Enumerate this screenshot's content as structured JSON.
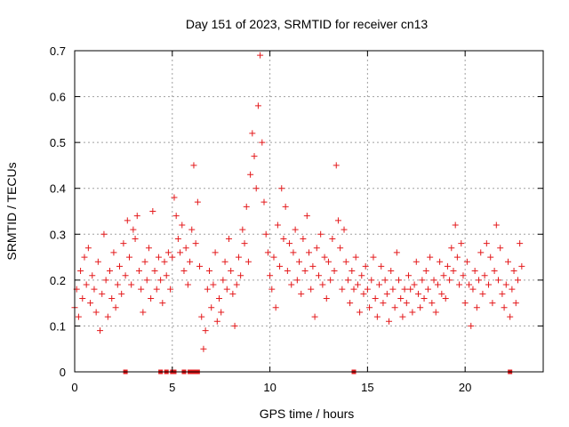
{
  "chart_data": {
    "type": "scatter",
    "title": "Day 151 of 2023, SRMTID for receiver cn13",
    "xlabel": "GPS time / hours",
    "ylabel": "SRMTID / TECUs",
    "xlim": [
      0,
      24
    ],
    "ylim": [
      0,
      0.7
    ],
    "xticks": [
      "0",
      "5",
      "10",
      "15",
      "20"
    ],
    "yticks": [
      "0",
      "0.1",
      "0.2",
      "0.3",
      "0.4",
      "0.5",
      "0.6",
      "0.7"
    ],
    "grid": true,
    "marker": "plus",
    "color": "#e41a1c",
    "series": [
      {
        "name": "SRMTID",
        "points": [
          [
            0.0,
            0.14
          ],
          [
            0.1,
            0.18
          ],
          [
            0.2,
            0.12
          ],
          [
            0.3,
            0.22
          ],
          [
            0.4,
            0.16
          ],
          [
            0.5,
            0.25
          ],
          [
            0.6,
            0.19
          ],
          [
            0.7,
            0.27
          ],
          [
            0.8,
            0.15
          ],
          [
            0.9,
            0.21
          ],
          [
            1.0,
            0.18
          ],
          [
            1.1,
            0.13
          ],
          [
            1.2,
            0.24
          ],
          [
            1.3,
            0.09
          ],
          [
            1.4,
            0.17
          ],
          [
            1.5,
            0.3
          ],
          [
            1.6,
            0.2
          ],
          [
            1.7,
            0.12
          ],
          [
            1.8,
            0.22
          ],
          [
            1.9,
            0.16
          ],
          [
            2.0,
            0.26
          ],
          [
            2.1,
            0.14
          ],
          [
            2.2,
            0.19
          ],
          [
            2.3,
            0.23
          ],
          [
            2.4,
            0.17
          ],
          [
            2.5,
            0.28
          ],
          [
            2.6,
            0.21
          ],
          [
            2.7,
            0.33
          ],
          [
            2.8,
            0.25
          ],
          [
            2.9,
            0.19
          ],
          [
            3.0,
            0.31
          ],
          [
            3.1,
            0.29
          ],
          [
            3.2,
            0.34
          ],
          [
            3.3,
            0.22
          ],
          [
            3.4,
            0.18
          ],
          [
            3.5,
            0.13
          ],
          [
            3.6,
            0.24
          ],
          [
            3.7,
            0.2
          ],
          [
            3.8,
            0.27
          ],
          [
            3.9,
            0.16
          ],
          [
            4.0,
            0.35
          ],
          [
            4.1,
            0.22
          ],
          [
            4.2,
            0.18
          ],
          [
            4.3,
            0.25
          ],
          [
            4.4,
            0.2
          ],
          [
            4.5,
            0.15
          ],
          [
            4.6,
            0.24
          ],
          [
            4.7,
            0.21
          ],
          [
            4.8,
            0.26
          ],
          [
            4.9,
            0.18
          ],
          [
            5.0,
            0.25
          ],
          [
            5.1,
            0.38
          ],
          [
            5.2,
            0.34
          ],
          [
            5.3,
            0.29
          ],
          [
            5.4,
            0.26
          ],
          [
            5.5,
            0.32
          ],
          [
            5.6,
            0.22
          ],
          [
            5.7,
            0.27
          ],
          [
            5.8,
            0.19
          ],
          [
            5.9,
            0.24
          ],
          [
            6.0,
            0.31
          ],
          [
            6.1,
            0.45
          ],
          [
            6.2,
            0.28
          ],
          [
            6.3,
            0.37
          ],
          [
            6.4,
            0.23
          ],
          [
            6.5,
            0.12
          ],
          [
            6.6,
            0.05
          ],
          [
            6.7,
            0.09
          ],
          [
            6.8,
            0.18
          ],
          [
            6.9,
            0.22
          ],
          [
            7.0,
            0.14
          ],
          [
            7.1,
            0.19
          ],
          [
            7.2,
            0.26
          ],
          [
            7.3,
            0.11
          ],
          [
            7.4,
            0.16
          ],
          [
            7.5,
            0.13
          ],
          [
            7.6,
            0.2
          ],
          [
            7.7,
            0.24
          ],
          [
            7.8,
            0.18
          ],
          [
            7.9,
            0.29
          ],
          [
            8.0,
            0.22
          ],
          [
            8.1,
            0.17
          ],
          [
            8.2,
            0.1
          ],
          [
            8.3,
            0.19
          ],
          [
            8.4,
            0.25
          ],
          [
            8.5,
            0.21
          ],
          [
            8.6,
            0.31
          ],
          [
            8.7,
            0.28
          ],
          [
            8.8,
            0.36
          ],
          [
            8.9,
            0.24
          ],
          [
            9.0,
            0.43
          ],
          [
            9.1,
            0.52
          ],
          [
            9.2,
            0.47
          ],
          [
            9.3,
            0.4
          ],
          [
            9.4,
            0.58
          ],
          [
            9.5,
            0.69
          ],
          [
            9.6,
            0.5
          ],
          [
            9.7,
            0.37
          ],
          [
            9.8,
            0.3
          ],
          [
            9.9,
            0.26
          ],
          [
            10.0,
            0.21
          ],
          [
            10.1,
            0.18
          ],
          [
            10.2,
            0.25
          ],
          [
            10.3,
            0.14
          ],
          [
            10.4,
            0.32
          ],
          [
            10.5,
            0.23
          ],
          [
            10.6,
            0.4
          ],
          [
            10.7,
            0.29
          ],
          [
            10.8,
            0.36
          ],
          [
            10.9,
            0.22
          ],
          [
            11.0,
            0.28
          ],
          [
            11.1,
            0.19
          ],
          [
            11.2,
            0.26
          ],
          [
            11.3,
            0.31
          ],
          [
            11.4,
            0.2
          ],
          [
            11.5,
            0.24
          ],
          [
            11.6,
            0.17
          ],
          [
            11.7,
            0.29
          ],
          [
            11.8,
            0.22
          ],
          [
            11.9,
            0.34
          ],
          [
            12.0,
            0.26
          ],
          [
            12.1,
            0.18
          ],
          [
            12.2,
            0.23
          ],
          [
            12.3,
            0.12
          ],
          [
            12.4,
            0.27
          ],
          [
            12.5,
            0.21
          ],
          [
            12.6,
            0.3
          ],
          [
            12.7,
            0.19
          ],
          [
            12.8,
            0.25
          ],
          [
            12.9,
            0.16
          ],
          [
            13.0,
            0.24
          ],
          [
            13.1,
            0.2
          ],
          [
            13.2,
            0.29
          ],
          [
            13.3,
            0.22
          ],
          [
            13.4,
            0.45
          ],
          [
            13.5,
            0.33
          ],
          [
            13.6,
            0.27
          ],
          [
            13.7,
            0.18
          ],
          [
            13.8,
            0.31
          ],
          [
            13.9,
            0.24
          ],
          [
            14.0,
            0.2
          ],
          [
            14.1,
            0.15
          ],
          [
            14.2,
            0.22
          ],
          [
            14.3,
            0.18
          ],
          [
            14.4,
            0.25
          ],
          [
            14.5,
            0.19
          ],
          [
            14.6,
            0.13
          ],
          [
            14.7,
            0.21
          ],
          [
            14.8,
            0.17
          ],
          [
            14.9,
            0.23
          ],
          [
            15.0,
            0.18
          ],
          [
            15.1,
            0.14
          ],
          [
            15.2,
            0.2
          ],
          [
            15.3,
            0.25
          ],
          [
            15.4,
            0.16
          ],
          [
            15.5,
            0.12
          ],
          [
            15.6,
            0.19
          ],
          [
            15.7,
            0.23
          ],
          [
            15.8,
            0.15
          ],
          [
            15.9,
            0.2
          ],
          [
            16.0,
            0.17
          ],
          [
            16.1,
            0.11
          ],
          [
            16.2,
            0.22
          ],
          [
            16.3,
            0.18
          ],
          [
            16.4,
            0.14
          ],
          [
            16.5,
            0.26
          ],
          [
            16.6,
            0.2
          ],
          [
            16.7,
            0.16
          ],
          [
            16.8,
            0.12
          ],
          [
            16.9,
            0.18
          ],
          [
            17.0,
            0.15
          ],
          [
            17.1,
            0.21
          ],
          [
            17.2,
            0.18
          ],
          [
            17.3,
            0.13
          ],
          [
            17.4,
            0.19
          ],
          [
            17.5,
            0.24
          ],
          [
            17.6,
            0.17
          ],
          [
            17.7,
            0.14
          ],
          [
            17.8,
            0.2
          ],
          [
            17.9,
            0.16
          ],
          [
            18.0,
            0.22
          ],
          [
            18.1,
            0.18
          ],
          [
            18.2,
            0.25
          ],
          [
            18.3,
            0.15
          ],
          [
            18.4,
            0.2
          ],
          [
            18.5,
            0.13
          ],
          [
            18.6,
            0.19
          ],
          [
            18.7,
            0.24
          ],
          [
            18.8,
            0.17
          ],
          [
            18.9,
            0.21
          ],
          [
            19.0,
            0.16
          ],
          [
            19.1,
            0.23
          ],
          [
            19.2,
            0.2
          ],
          [
            19.3,
            0.27
          ],
          [
            19.4,
            0.22
          ],
          [
            19.5,
            0.32
          ],
          [
            19.6,
            0.25
          ],
          [
            19.7,
            0.19
          ],
          [
            19.8,
            0.28
          ],
          [
            19.9,
            0.21
          ],
          [
            20.0,
            0.15
          ],
          [
            20.1,
            0.24
          ],
          [
            20.2,
            0.19
          ],
          [
            20.3,
            0.1
          ],
          [
            20.4,
            0.18
          ],
          [
            20.5,
            0.22
          ],
          [
            20.6,
            0.14
          ],
          [
            20.7,
            0.2
          ],
          [
            20.8,
            0.26
          ],
          [
            20.9,
            0.17
          ],
          [
            21.0,
            0.21
          ],
          [
            21.1,
            0.28
          ],
          [
            21.2,
            0.19
          ],
          [
            21.3,
            0.25
          ],
          [
            21.4,
            0.15
          ],
          [
            21.5,
            0.22
          ],
          [
            21.6,
            0.32
          ],
          [
            21.7,
            0.2
          ],
          [
            21.8,
            0.27
          ],
          [
            21.9,
            0.17
          ],
          [
            22.0,
            0.14
          ],
          [
            22.1,
            0.19
          ],
          [
            22.2,
            0.24
          ],
          [
            22.3,
            0.12
          ],
          [
            22.4,
            0.18
          ],
          [
            22.5,
            0.22
          ],
          [
            22.6,
            0.15
          ],
          [
            22.7,
            0.2
          ],
          [
            22.8,
            0.28
          ],
          [
            22.9,
            0.23
          ],
          [
            2.6,
            0.0
          ],
          [
            4.4,
            0.0
          ],
          [
            4.7,
            0.0
          ],
          [
            5.0,
            0.0
          ],
          [
            5.1,
            0.0
          ],
          [
            5.6,
            0.0
          ],
          [
            5.9,
            0.0
          ],
          [
            6.1,
            0.0
          ],
          [
            6.3,
            0.0
          ],
          [
            14.3,
            0.0
          ],
          [
            22.3,
            0.0
          ]
        ]
      }
    ]
  }
}
